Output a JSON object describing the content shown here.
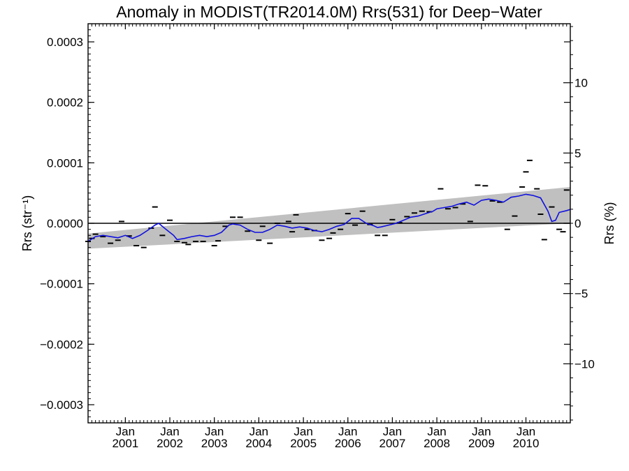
{
  "chart_data": {
    "type": "line",
    "title": "Anomaly in MODIST(TR2014.0M) Rrs(531) for Deep−Water",
    "ylabel": "Rrs (str⁻¹)",
    "y2label": "Rrs (%)",
    "ylim": [
      -0.00033,
      0.00033
    ],
    "y2lim": [
      -14.2,
      14.2
    ],
    "xlim": [
      "2000-03-01",
      "2010-12-31"
    ],
    "yticks": [
      {
        "value": -0.0003,
        "label": "−0.0003"
      },
      {
        "value": -0.0002,
        "label": "−0.0002"
      },
      {
        "value": -0.0001,
        "label": "−0.0001"
      },
      {
        "value": 0.0,
        "label": "0.0000"
      },
      {
        "value": 0.0001,
        "label": "0.0001"
      },
      {
        "value": 0.0002,
        "label": "0.0002"
      },
      {
        "value": 0.0003,
        "label": "0.0003"
      }
    ],
    "y2ticks": [
      {
        "value": -10,
        "label": "−10"
      },
      {
        "value": -5,
        "label": "−5"
      },
      {
        "value": 0,
        "label": "0"
      },
      {
        "value": 5,
        "label": "5"
      },
      {
        "value": 10,
        "label": "10"
      }
    ],
    "xticks": [
      {
        "date": "2001-01-01",
        "month": "Jan",
        "year": "2001"
      },
      {
        "date": "2002-01-01",
        "month": "Jan",
        "year": "2002"
      },
      {
        "date": "2003-01-01",
        "month": "Jan",
        "year": "2003"
      },
      {
        "date": "2004-01-01",
        "month": "Jan",
        "year": "2004"
      },
      {
        "date": "2005-01-01",
        "month": "Jan",
        "year": "2005"
      },
      {
        "date": "2006-01-01",
        "month": "Jan",
        "year": "2006"
      },
      {
        "date": "2007-01-01",
        "month": "Jan",
        "year": "2007"
      },
      {
        "date": "2008-01-01",
        "month": "Jan",
        "year": "2008"
      },
      {
        "date": "2009-01-01",
        "month": "Jan",
        "year": "2009"
      },
      {
        "date": "2010-01-01",
        "month": "Jan",
        "year": "2010"
      }
    ],
    "band": {
      "start": "2000-03-01",
      "end": "2010-12-31",
      "lower_start": -4.2e-05,
      "upper_start": -1.7e-05,
      "lower_end": 0.0,
      "upper_end": 6e-05,
      "color": "#c0c0c0"
    },
    "zero_line": 0,
    "series": [
      {
        "style": "line",
        "color": "#1010e0",
        "points": [
          [
            "2000-03-01",
            -3e-05
          ],
          [
            "2000-05-01",
            -2.2e-05
          ],
          [
            "2000-07-01",
            -2e-05
          ],
          [
            "2000-09-01",
            -2.2e-05
          ],
          [
            "2000-11-01",
            -2.4e-05
          ],
          [
            "2001-01-01",
            -2e-05
          ],
          [
            "2001-03-01",
            -2.5e-05
          ],
          [
            "2001-05-01",
            -2e-05
          ],
          [
            "2001-07-01",
            -1.2e-05
          ],
          [
            "2001-09-01",
            -3e-06
          ],
          [
            "2001-10-01",
            0.0
          ],
          [
            "2001-12-01",
            -1e-05
          ],
          [
            "2002-02-01",
            -2e-05
          ],
          [
            "2002-03-01",
            -2.7e-05
          ],
          [
            "2002-05-01",
            -2.5e-05
          ],
          [
            "2002-07-01",
            -2.2e-05
          ],
          [
            "2002-09-01",
            -2e-05
          ],
          [
            "2002-11-01",
            -2.2e-05
          ],
          [
            "2003-01-01",
            -2e-05
          ],
          [
            "2003-03-01",
            -1.5e-05
          ],
          [
            "2003-05-01",
            -3e-06
          ],
          [
            "2003-06-01",
            -1e-06
          ],
          [
            "2003-08-01",
            -3e-06
          ],
          [
            "2003-10-01",
            -1e-05
          ],
          [
            "2003-12-01",
            -1.5e-05
          ],
          [
            "2004-02-01",
            -1.5e-05
          ],
          [
            "2004-04-01",
            -1e-05
          ],
          [
            "2004-06-01",
            -3e-06
          ],
          [
            "2004-08-01",
            -5e-06
          ],
          [
            "2004-10-01",
            -8e-06
          ],
          [
            "2004-12-01",
            -6e-06
          ],
          [
            "2005-02-01",
            -8e-06
          ],
          [
            "2005-04-01",
            -1.2e-05
          ],
          [
            "2005-06-01",
            -1.4e-05
          ],
          [
            "2005-08-01",
            -1e-05
          ],
          [
            "2005-10-01",
            -5e-06
          ],
          [
            "2005-12-01",
            -2e-06
          ],
          [
            "2006-02-01",
            8e-06
          ],
          [
            "2006-04-01",
            8e-06
          ],
          [
            "2006-06-01",
            0.0
          ],
          [
            "2006-08-01",
            -4e-06
          ],
          [
            "2006-09-01",
            -7e-06
          ],
          [
            "2006-10-01",
            -6e-06
          ],
          [
            "2006-12-01",
            -3e-06
          ],
          [
            "2007-02-01",
            0.0
          ],
          [
            "2007-04-01",
            5e-06
          ],
          [
            "2007-06-01",
            1e-05
          ],
          [
            "2007-08-01",
            1.2e-05
          ],
          [
            "2007-10-01",
            1.6e-05
          ],
          [
            "2007-12-01",
            2e-05
          ],
          [
            "2008-01-01",
            2.4e-05
          ],
          [
            "2008-03-01",
            2.6e-05
          ],
          [
            "2008-05-01",
            2.8e-05
          ],
          [
            "2008-07-01",
            3.2e-05
          ],
          [
            "2008-09-01",
            3.5e-05
          ],
          [
            "2008-11-01",
            3e-05
          ],
          [
            "2009-01-01",
            3.8e-05
          ],
          [
            "2009-03-01",
            4e-05
          ],
          [
            "2009-05-01",
            3.8e-05
          ],
          [
            "2009-07-01",
            3.5e-05
          ],
          [
            "2009-09-01",
            4.3e-05
          ],
          [
            "2009-11-01",
            4.5e-05
          ],
          [
            "2010-01-01",
            4.8e-05
          ],
          [
            "2010-03-01",
            4.6e-05
          ],
          [
            "2010-05-01",
            4.2e-05
          ],
          [
            "2010-07-01",
            2e-05
          ],
          [
            "2010-08-01",
            3e-06
          ],
          [
            "2010-09-01",
            5e-06
          ],
          [
            "2010-10-01",
            1.8e-05
          ],
          [
            "2010-12-01",
            2.1e-05
          ],
          [
            "2010-12-31",
            2.3e-05
          ]
        ]
      },
      {
        "style": "dash",
        "color": "#000000",
        "points": [
          [
            "2000-03-01",
            -3e-05
          ],
          [
            "2000-04-01",
            -2.5e-05
          ],
          [
            "2000-05-01",
            -1.8e-05
          ],
          [
            "2000-07-01",
            -2.2e-05
          ],
          [
            "2000-09-01",
            -3.3e-05
          ],
          [
            "2000-11-01",
            -2.8e-05
          ],
          [
            "2000-12-01",
            3e-06
          ],
          [
            "2001-02-01",
            -2.1e-05
          ],
          [
            "2001-04-01",
            -3.7e-05
          ],
          [
            "2001-06-01",
            -4e-05
          ],
          [
            "2001-08-01",
            -8e-06
          ],
          [
            "2001-09-01",
            2.7e-05
          ],
          [
            "2001-11-01",
            -2e-05
          ],
          [
            "2002-01-01",
            5e-06
          ],
          [
            "2002-03-01",
            -3e-05
          ],
          [
            "2002-05-01",
            -3.2e-05
          ],
          [
            "2002-06-01",
            -3.5e-05
          ],
          [
            "2002-08-01",
            -3e-05
          ],
          [
            "2002-10-01",
            -3e-05
          ],
          [
            "2003-01-01",
            -3.7e-05
          ],
          [
            "2003-02-01",
            -2.9e-05
          ],
          [
            "2003-04-01",
            -5e-06
          ],
          [
            "2003-06-01",
            1e-05
          ],
          [
            "2003-08-01",
            1e-05
          ],
          [
            "2003-10-01",
            -1.3e-05
          ],
          [
            "2004-01-01",
            -2.8e-05
          ],
          [
            "2004-02-01",
            -5e-06
          ],
          [
            "2004-04-01",
            -3.3e-05
          ],
          [
            "2004-06-01",
            0.0
          ],
          [
            "2004-09-01",
            3e-06
          ],
          [
            "2004-10-01",
            -1.4e-05
          ],
          [
            "2004-11-01",
            1.4e-05
          ],
          [
            "2005-02-01",
            -1e-05
          ],
          [
            "2005-04-01",
            -1.2e-05
          ],
          [
            "2005-06-01",
            -2.8e-05
          ],
          [
            "2005-08-01",
            -2.5e-05
          ],
          [
            "2005-09-01",
            -1.6e-05
          ],
          [
            "2005-11-01",
            -1e-05
          ],
          [
            "2006-01-01",
            1.6e-05
          ],
          [
            "2006-03-01",
            -3e-06
          ],
          [
            "2006-05-01",
            2e-05
          ],
          [
            "2006-07-01",
            -2e-06
          ],
          [
            "2006-09-01",
            -2e-05
          ],
          [
            "2006-11-01",
            -2e-05
          ],
          [
            "2007-01-01",
            6e-06
          ],
          [
            "2007-03-01",
            1e-06
          ],
          [
            "2007-05-01",
            1.1e-05
          ],
          [
            "2007-07-01",
            1.7e-05
          ],
          [
            "2007-09-01",
            2e-05
          ],
          [
            "2007-11-01",
            1.9e-05
          ],
          [
            "2008-02-01",
            5.7e-05
          ],
          [
            "2008-04-01",
            2.4e-05
          ],
          [
            "2008-06-01",
            2.6e-05
          ],
          [
            "2008-08-01",
            3.2e-05
          ],
          [
            "2008-10-01",
            3e-06
          ],
          [
            "2008-12-01",
            6.3e-05
          ],
          [
            "2009-02-01",
            6.2e-05
          ],
          [
            "2009-04-01",
            3.7e-05
          ],
          [
            "2009-06-01",
            3.5e-05
          ],
          [
            "2009-08-01",
            -1e-05
          ],
          [
            "2009-10-01",
            1.2e-05
          ],
          [
            "2009-12-01",
            6e-05
          ],
          [
            "2010-01-01",
            8.5e-05
          ],
          [
            "2010-02-01",
            0.000104
          ],
          [
            "2010-04-01",
            5.7e-05
          ],
          [
            "2010-05-01",
            1.5e-05
          ],
          [
            "2010-06-01",
            -2.7e-05
          ],
          [
            "2010-08-01",
            2.7e-05
          ],
          [
            "2010-10-01",
            -1e-05
          ],
          [
            "2010-11-01",
            -1.4e-05
          ],
          [
            "2010-12-01",
            5.5e-05
          ]
        ]
      }
    ]
  }
}
